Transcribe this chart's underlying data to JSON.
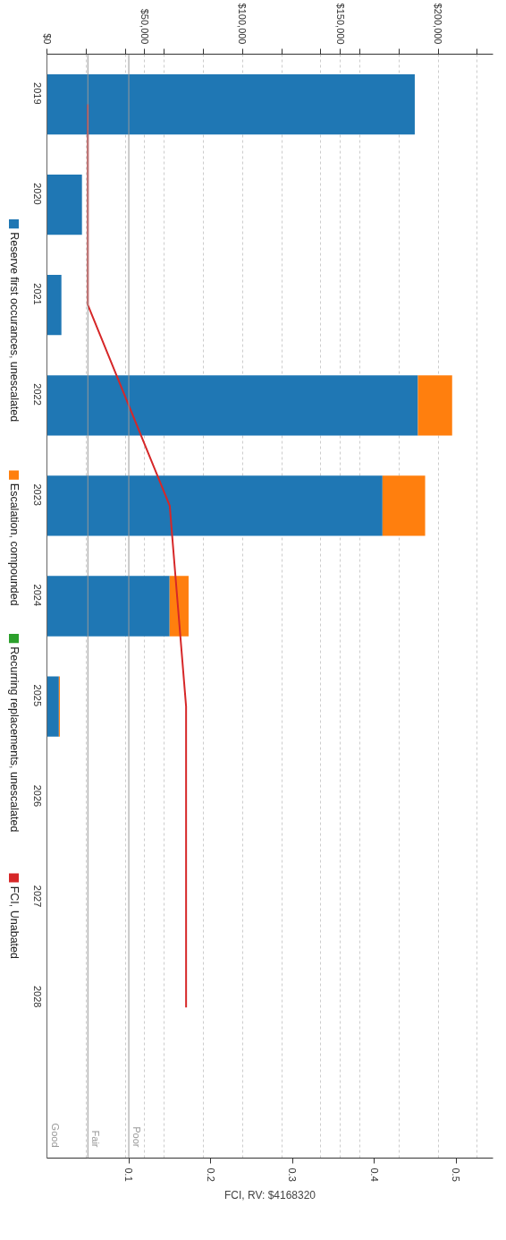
{
  "chart_data": {
    "type": "bar",
    "orientation": "horizontal",
    "stacked": true,
    "categories": [
      "2019",
      "2020",
      "2021",
      "2022",
      "2023",
      "2024",
      "2025",
      "2026",
      "2027",
      "2028",
      null
    ],
    "series": [
      {
        "name": "Reserve first occurances, unescalated",
        "color": "#1f77b4",
        "values": [
          188000,
          17900,
          7400,
          189600,
          171500,
          62700,
          6100,
          0,
          0,
          0,
          null
        ]
      },
      {
        "name": "Escalation, compounded",
        "color": "#ff7f0e",
        "values": [
          0,
          0,
          0,
          17500,
          21800,
          9700,
          500,
          0,
          0,
          0,
          null
        ]
      },
      {
        "name": "Recurring replacements, unescalated",
        "color": "#2ca02c",
        "values": [
          0,
          0,
          0,
          0,
          0,
          0,
          0,
          0,
          0,
          0,
          null
        ]
      },
      {
        "name": "FCI, Unabated",
        "color": "#d62728",
        "type": "line",
        "axis": "x2",
        "values": [
          0.05,
          0.05,
          0.05,
          0.1,
          0.15,
          0.16,
          0.17,
          0.17,
          0.17,
          0.17,
          null
        ]
      }
    ],
    "xlim": [
      0,
      228000
    ],
    "xticks": [
      {
        "value": 0,
        "label": "$0"
      },
      {
        "value": 20000,
        "label": null
      },
      {
        "value": 40000,
        "label": null
      },
      {
        "value": 50000,
        "label": "$50,000"
      },
      {
        "value": 60000,
        "label": null
      },
      {
        "value": 80000,
        "label": null
      },
      {
        "value": 100000,
        "label": "$100,000"
      },
      {
        "value": 120000,
        "label": null
      },
      {
        "value": 140000,
        "label": null
      },
      {
        "value": 150000,
        "label": "$150,000"
      },
      {
        "value": 160000,
        "label": null
      },
      {
        "value": 180000,
        "label": null
      },
      {
        "value": 200000,
        "label": "$200,000"
      },
      {
        "value": 220000,
        "label": null
      }
    ],
    "x2lim": [
      0,
      0.545
    ],
    "x2ticks": [
      0.1,
      0.2,
      0.3,
      0.4,
      0.5
    ],
    "x2label": "FCI, RV: $4168320",
    "ref_lines": [
      {
        "axis": "x2",
        "value": 0,
        "label": "Good",
        "color": "#999999"
      },
      {
        "axis": "x2",
        "value": 0.05,
        "label": "Fair",
        "color": "#999999"
      },
      {
        "axis": "x2",
        "value": 0.1,
        "label": "Poor",
        "color": "#999999"
      }
    ],
    "grid": "x",
    "legend": "left"
  }
}
